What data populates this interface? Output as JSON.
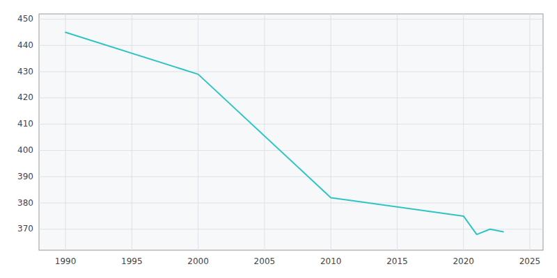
{
  "chart_data": {
    "type": "line",
    "x": [
      1990,
      2000,
      2010,
      2020,
      2021,
      2022,
      2023
    ],
    "values": [
      445,
      429,
      382,
      375,
      368,
      370,
      369
    ],
    "color": "#2EC4C4",
    "xlim": [
      1988,
      2026
    ],
    "ylim": [
      362,
      452
    ],
    "xticks": [
      1990,
      1995,
      2000,
      2005,
      2010,
      2015,
      2020,
      2025
    ],
    "yticks": [
      370,
      380,
      390,
      400,
      410,
      420,
      430,
      440,
      450
    ],
    "grid": true
  }
}
